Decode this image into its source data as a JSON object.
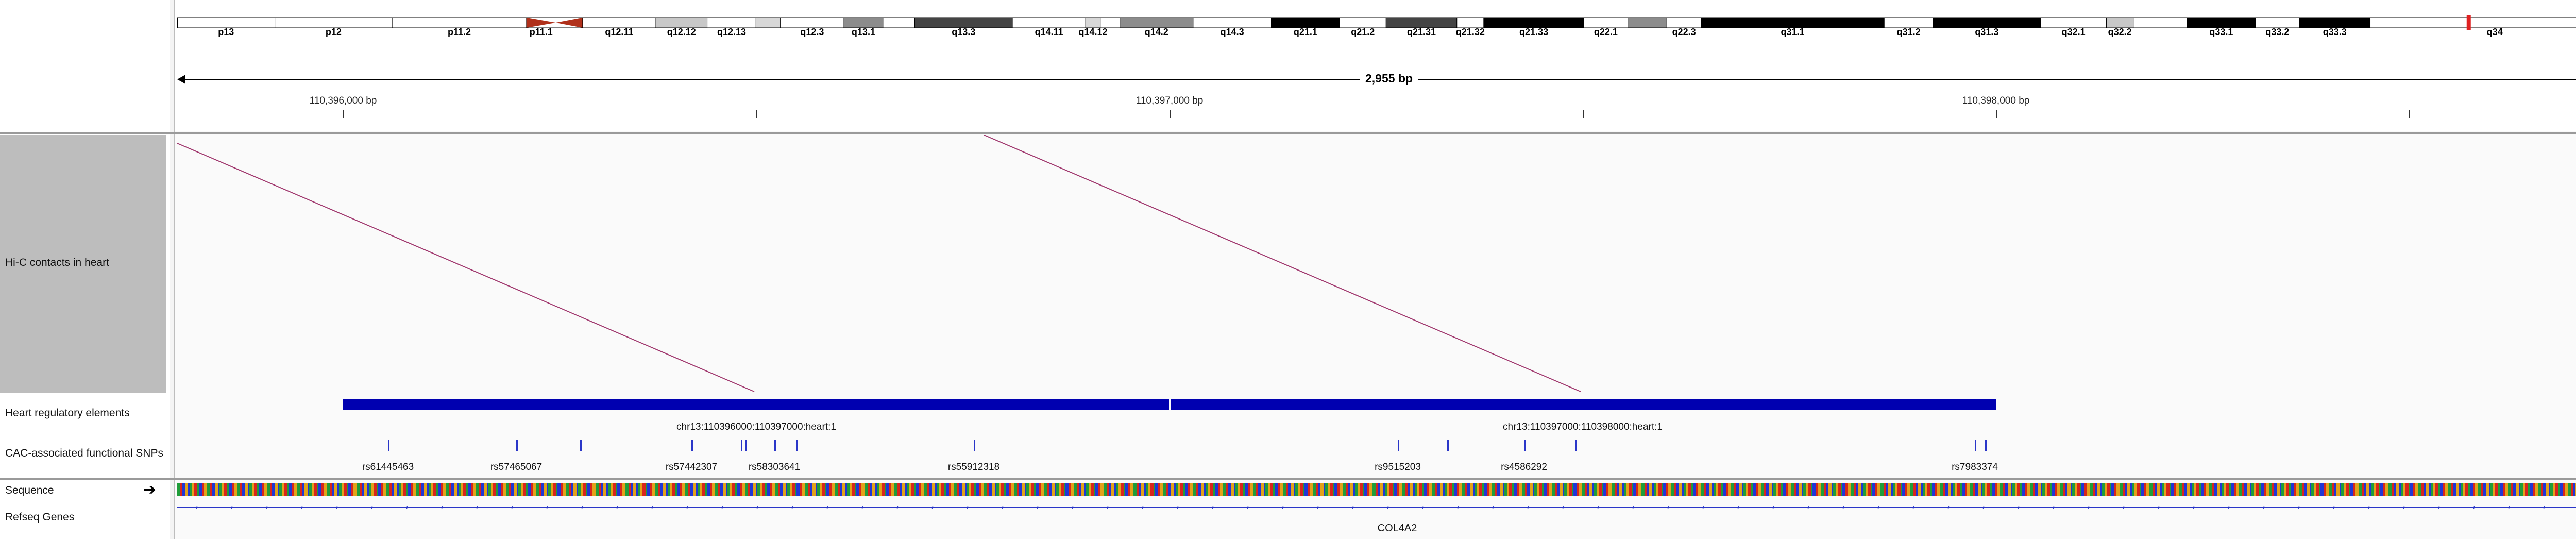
{
  "ideogram": {
    "bands": [
      {
        "name": "p13",
        "start": 0.0,
        "end": 0.04,
        "color": "#ffffff",
        "label": "p13"
      },
      {
        "name": "p12",
        "start": 0.04,
        "end": 0.088,
        "color": "#ffffff",
        "label": "p12"
      },
      {
        "name": "p11.2",
        "start": 0.088,
        "end": 0.143,
        "color": "#ffffff",
        "label": "p11.2"
      },
      {
        "name": "p11.1",
        "start": 0.143,
        "end": 0.155,
        "color": "#b0301a",
        "label": "p11.1"
      },
      {
        "name": "q11",
        "start": 0.155,
        "end": 0.166,
        "color": "#b0301a",
        "label": ""
      },
      {
        "name": "q12.11",
        "start": 0.166,
        "end": 0.196,
        "color": "#ffffff",
        "label": "q12.11"
      },
      {
        "name": "q12.12",
        "start": 0.196,
        "end": 0.217,
        "color": "#c8c8c8",
        "label": "q12.12"
      },
      {
        "name": "q12.13",
        "start": 0.217,
        "end": 0.237,
        "color": "#ffffff",
        "label": "q12.13"
      },
      {
        "name": "q12.2",
        "start": 0.237,
        "end": 0.247,
        "color": "#d8d8d8",
        "label": ""
      },
      {
        "name": "q12.3",
        "start": 0.247,
        "end": 0.273,
        "color": "#ffffff",
        "label": "q12.3"
      },
      {
        "name": "q13.1",
        "start": 0.273,
        "end": 0.289,
        "color": "#8c8c8c",
        "label": "q13.1"
      },
      {
        "name": "q13.2",
        "start": 0.289,
        "end": 0.302,
        "color": "#ffffff",
        "label": ""
      },
      {
        "name": "q13.3",
        "start": 0.302,
        "end": 0.342,
        "color": "#444444",
        "label": "q13.3"
      },
      {
        "name": "q14.11",
        "start": 0.342,
        "end": 0.372,
        "color": "#ffffff",
        "label": "q14.11"
      },
      {
        "name": "q14.12",
        "start": 0.372,
        "end": 0.378,
        "color": "#d8d8d8",
        "label": "q14.12"
      },
      {
        "name": "q14.13",
        "start": 0.378,
        "end": 0.386,
        "color": "#ffffff",
        "label": ""
      },
      {
        "name": "q14.2",
        "start": 0.386,
        "end": 0.416,
        "color": "#8c8c8c",
        "label": "q14.2"
      },
      {
        "name": "q14.3",
        "start": 0.416,
        "end": 0.448,
        "color": "#ffffff",
        "label": "q14.3"
      },
      {
        "name": "q21.1",
        "start": 0.448,
        "end": 0.476,
        "color": "#000000",
        "label": "q21.1"
      },
      {
        "name": "q21.2",
        "start": 0.476,
        "end": 0.495,
        "color": "#ffffff",
        "label": "q21.2"
      },
      {
        "name": "q21.31",
        "start": 0.495,
        "end": 0.524,
        "color": "#444444",
        "label": "q21.31"
      },
      {
        "name": "q21.32",
        "start": 0.524,
        "end": 0.535,
        "color": "#ffffff",
        "label": "q21.32"
      },
      {
        "name": "q21.33",
        "start": 0.535,
        "end": 0.576,
        "color": "#000000",
        "label": "q21.33"
      },
      {
        "name": "q22.1",
        "start": 0.576,
        "end": 0.594,
        "color": "#ffffff",
        "label": "q22.1"
      },
      {
        "name": "q22.2",
        "start": 0.594,
        "end": 0.61,
        "color": "#8c8c8c",
        "label": ""
      },
      {
        "name": "q22.3",
        "start": 0.61,
        "end": 0.624,
        "color": "#ffffff",
        "label": "q22.3"
      },
      {
        "name": "q31.1",
        "start": 0.624,
        "end": 0.699,
        "color": "#000000",
        "label": "q31.1"
      },
      {
        "name": "q31.2",
        "start": 0.699,
        "end": 0.719,
        "color": "#ffffff",
        "label": "q31.2"
      },
      {
        "name": "q31.3",
        "start": 0.719,
        "end": 0.763,
        "color": "#000000",
        "label": "q31.3"
      },
      {
        "name": "q32.1",
        "start": 0.763,
        "end": 0.79,
        "color": "#ffffff",
        "label": "q32.1"
      },
      {
        "name": "q32.2",
        "start": 0.79,
        "end": 0.801,
        "color": "#c8c8c8",
        "label": "q32.2"
      },
      {
        "name": "q32.3",
        "start": 0.801,
        "end": 0.823,
        "color": "#ffffff",
        "label": ""
      },
      {
        "name": "q33.1",
        "start": 0.823,
        "end": 0.851,
        "color": "#000000",
        "label": "q33.1"
      },
      {
        "name": "q33.2",
        "start": 0.851,
        "end": 0.869,
        "color": "#ffffff",
        "label": "q33.2"
      },
      {
        "name": "q33.3",
        "start": 0.869,
        "end": 0.898,
        "color": "#000000",
        "label": "q33.3"
      },
      {
        "name": "q34",
        "start": 0.898,
        "end": 1.0,
        "color": "#ffffff",
        "label": "q34"
      }
    ],
    "current_region_marker_color": "#e02020"
  },
  "locus": {
    "span_label": "2,955 bp",
    "ruler_labels": [
      "110,396,000 bp",
      "110,397,000 bp",
      "110,398,000 bp"
    ]
  },
  "tracks": {
    "hic": {
      "name": "Hi-C contacts in heart",
      "arc_color": "#a0386e"
    },
    "regulatory": {
      "name": "Heart regulatory elements",
      "bar_color": "#0000b0",
      "labels": [
        "chr13:110396000:110397000:heart:1",
        "chr13:110397000:110398000:heart:1"
      ]
    },
    "snps": {
      "name": "CAC-associated functional SNPs",
      "tick_color": "#2a36c8",
      "labels": [
        "rs61445463",
        "rs57465067",
        "rs57442307",
        "rs58303641",
        "rs55912318",
        "rs9515203",
        "rs4586292",
        "rs7983374"
      ]
    },
    "sequence": {
      "name": "Sequence",
      "strand_icon": "right-arrow-icon"
    },
    "refseq": {
      "name": "Refseq Genes",
      "gene_label": "COL4A2"
    }
  }
}
